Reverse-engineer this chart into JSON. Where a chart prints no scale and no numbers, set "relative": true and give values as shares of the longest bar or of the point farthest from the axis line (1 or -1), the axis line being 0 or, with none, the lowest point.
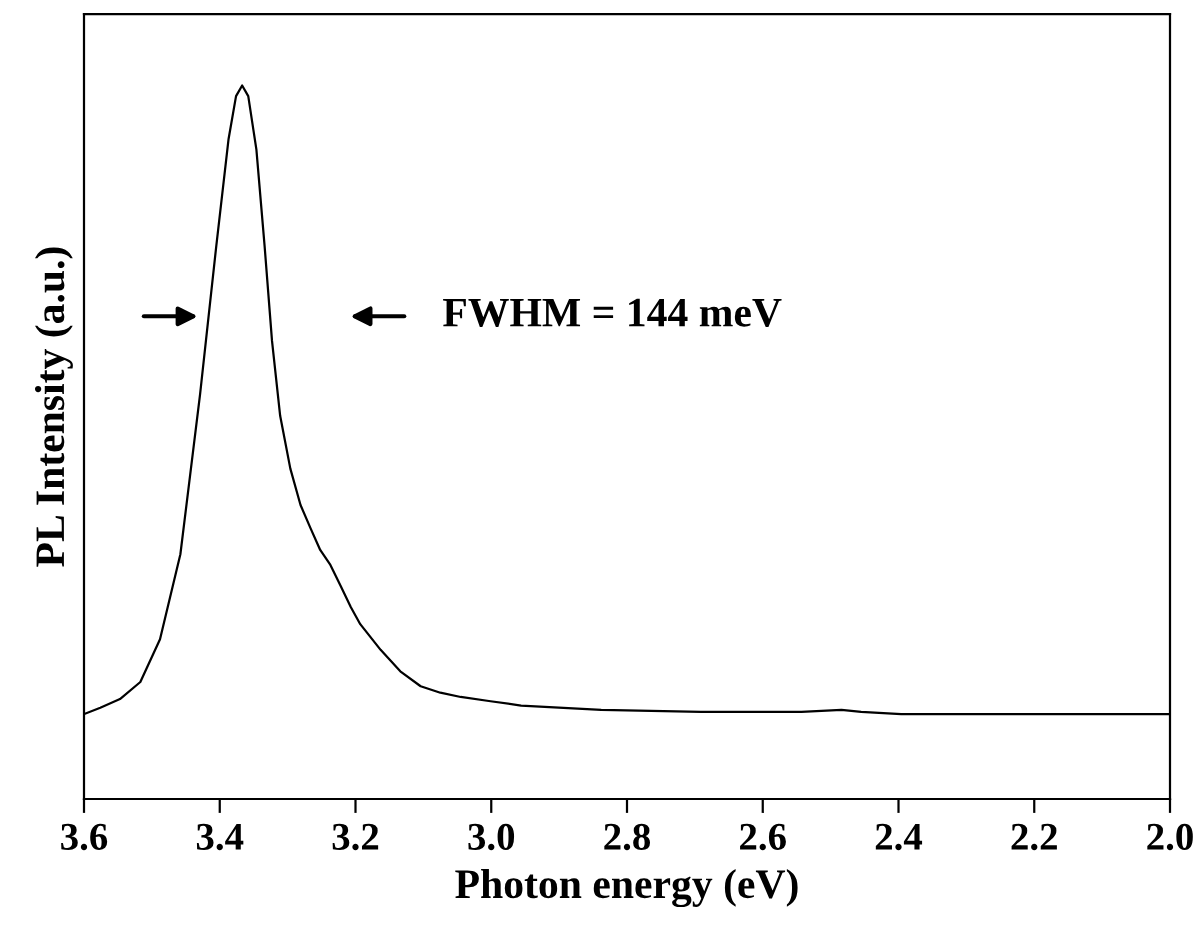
{
  "chart_data": {
    "type": "line",
    "xlabel": "Photon energy (eV)",
    "ylabel": "PL Intensity (a.u.)",
    "annotations": [
      "FWHM = 144 meV"
    ],
    "relative": true,
    "xlim": [
      3.6,
      2.0
    ],
    "xticks": [
      3.6,
      3.4,
      3.2,
      {
        "value": 3,
        "label": "3.0"
      },
      2.8,
      2.6,
      2.4,
      2.2,
      {
        "value": 2,
        "label": "2.0"
      }
    ],
    "tick_labels": "x",
    "grid": false,
    "series": [
      {
        "color": "#000000",
        "x": [
          3.6,
          3.576,
          3.547,
          3.517,
          3.488,
          3.458,
          3.429,
          3.405,
          3.387,
          3.376,
          3.367,
          3.358,
          3.346,
          3.334,
          3.323,
          3.311,
          3.296,
          3.281,
          3.266,
          3.252,
          3.237,
          3.222,
          3.207,
          3.193,
          3.163,
          3.134,
          3.104,
          3.075,
          3.045,
          3.001,
          2.956,
          2.838,
          2.691,
          2.543,
          2.484,
          2.455,
          2.396,
          2.248,
          2.1,
          2.0
        ],
        "values": [
          0.119,
          0.128,
          0.14,
          0.164,
          0.224,
          0.343,
          0.567,
          0.776,
          0.925,
          0.985,
          1,
          0.985,
          0.91,
          0.776,
          0.642,
          0.537,
          0.463,
          0.412,
          0.379,
          0.349,
          0.328,
          0.299,
          0.269,
          0.245,
          0.209,
          0.179,
          0.158,
          0.149,
          0.143,
          0.137,
          0.131,
          0.125,
          0.122,
          0.122,
          0.125,
          0.122,
          0.119,
          0.119,
          0.119,
          0.119
        ]
      }
    ]
  }
}
